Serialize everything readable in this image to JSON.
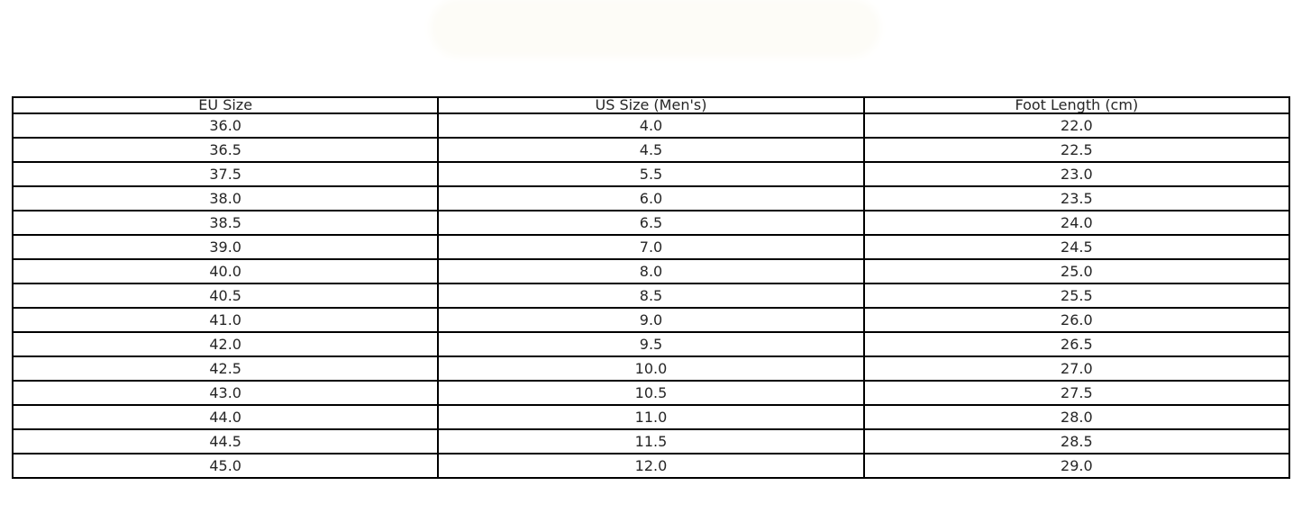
{
  "chart_data": {
    "type": "table",
    "columns": [
      "EU Size",
      "US Size (Men's)",
      "Foot Length (cm)"
    ],
    "rows": [
      [
        "36.0",
        "4.0",
        "22.0"
      ],
      [
        "36.5",
        "4.5",
        "22.5"
      ],
      [
        "37.5",
        "5.5",
        "23.0"
      ],
      [
        "38.0",
        "6.0",
        "23.5"
      ],
      [
        "38.5",
        "6.5",
        "24.0"
      ],
      [
        "39.0",
        "7.0",
        "24.5"
      ],
      [
        "40.0",
        "8.0",
        "25.0"
      ],
      [
        "40.5",
        "8.5",
        "25.5"
      ],
      [
        "41.0",
        "9.0",
        "26.0"
      ],
      [
        "42.0",
        "9.5",
        "26.5"
      ],
      [
        "42.5",
        "10.0",
        "27.0"
      ],
      [
        "43.0",
        "10.5",
        "27.5"
      ],
      [
        "44.0",
        "11.0",
        "28.0"
      ],
      [
        "44.5",
        "11.5",
        "28.5"
      ],
      [
        "45.0",
        "12.0",
        "29.0"
      ]
    ],
    "layout": {
      "grid": "on",
      "cell_alignment": "center",
      "header_position": "top"
    }
  },
  "colors": {
    "page_background": "#ffffff",
    "table_border": "#000000",
    "cell_text": "#262626",
    "faded_title_blob": "#fdfcf7"
  }
}
